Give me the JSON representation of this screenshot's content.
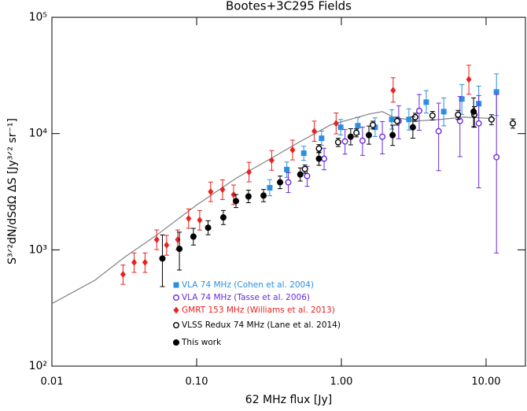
{
  "chart_data": {
    "type": "scatter",
    "title": "Bootes+3C295 Fields",
    "x_label": "62 MHz flux [Jy]",
    "y_label": "S³ᐟ²dN/dSdΩ ΔS [Jy³ᐟ² sr⁻¹]",
    "xscale": "log",
    "yscale": "log",
    "xlim": [
      0.01,
      18.7
    ],
    "ylim": [
      100,
      100000
    ],
    "xticks": [
      0.01,
      {
        "value": 0.1,
        "label": "0.10"
      },
      {
        "value": 1,
        "label": "1.00"
      },
      {
        "value": 10,
        "label": "10.00"
      }
    ],
    "yticks": [
      {
        "value": 100,
        "label": "10²"
      },
      {
        "value": 1000,
        "label": "10³"
      },
      {
        "value": 10000,
        "label": "10⁴"
      },
      {
        "value": 100000,
        "label": "10⁵"
      }
    ],
    "legend": "lower left",
    "model_curve": {
      "color": "#808080",
      "x": [
        0.01,
        0.0198,
        0.032,
        0.053,
        0.1,
        0.187,
        0.31,
        0.51,
        0.84,
        1.57,
        1.92,
        2.28,
        3.3,
        4.8,
        7.0,
        11.6
      ],
      "values": [
        345,
        547,
        870,
        1340,
        2430,
        4120,
        5890,
        8430,
        11860,
        14760,
        15450,
        13850,
        12830,
        13230,
        13850,
        13440
      ]
    },
    "series": [
      {
        "name": "VLA 74 MHz (Cohen et al. 2004)",
        "color": "#2a8fe0",
        "marker": "square",
        "x": [
          0.32,
          0.42,
          0.55,
          0.73,
          0.99,
          1.3,
          1.71,
          2.23,
          2.93,
          3.86,
          5.1,
          6.8,
          8.9,
          11.8
        ],
        "values": [
          3420,
          4900,
          6780,
          9110,
          11330,
          11680,
          11330,
          13230,
          13230,
          18630,
          15450,
          19840,
          18080,
          22800
        ],
        "yerr_minus": [
          500,
          700,
          900,
          1200,
          1600,
          1800,
          1900,
          2300,
          2500,
          3600,
          3800,
          5200,
          6000,
          8500
        ],
        "yerr_plus": [
          600,
          800,
          1000,
          1400,
          1900,
          2100,
          2300,
          2800,
          3100,
          4800,
          4800,
          6500,
          7500,
          9800
        ]
      },
      {
        "name": "VLA 74 MHz (Tasse et al. 2006)",
        "color": "#6a2ae0",
        "marker": "circle-open",
        "x": [
          0.43,
          0.58,
          0.76,
          1.06,
          1.4,
          1.92,
          2.49,
          3.45,
          4.7,
          6.6,
          8.9,
          11.8
        ],
        "values": [
          3810,
          4320,
          6080,
          8560,
          8690,
          9400,
          12830,
          15700,
          10480,
          12830,
          12240,
          6270
        ],
        "yerr_minus": [
          700,
          800,
          1200,
          1900,
          2200,
          2700,
          3800,
          5000,
          5680,
          6500,
          8830,
          5330
        ],
        "yerr_plus": [
          800,
          900,
          1400,
          2300,
          2700,
          3300,
          4500,
          6000,
          7800,
          8000,
          9000,
          15530
        ]
      },
      {
        "name": "GMRT 153 MHz (Williams et al. 2013)",
        "color": "#e8221f",
        "marker": "diamond",
        "x": [
          0.031,
          0.037,
          0.044,
          0.053,
          0.062,
          0.074,
          0.088,
          0.105,
          0.125,
          0.151,
          0.18,
          0.23,
          0.33,
          0.46,
          0.65,
          0.92,
          2.28,
          7.6
        ],
        "values": [
          615,
          780,
          780,
          1225,
          1100,
          1225,
          1860,
          1800,
          3160,
          3300,
          2980,
          4670,
          5890,
          7230,
          10480,
          12240,
          23530,
          29230
        ],
        "yerr_minus": [
          110,
          140,
          140,
          220,
          200,
          220,
          330,
          320,
          560,
          590,
          530,
          830,
          1050,
          1300,
          1900,
          2300,
          4900,
          7400
        ],
        "yerr_plus": [
          125,
          160,
          160,
          260,
          230,
          260,
          390,
          380,
          670,
          700,
          630,
          990,
          1250,
          1550,
          2300,
          2800,
          6700,
          9500
        ]
      },
      {
        "name": "VLSS Redux 74 MHz (Lane et al. 2014)",
        "color": "#000000",
        "marker": "circle-open",
        "x": [
          0.56,
          0.7,
          0.95,
          1.27,
          1.65,
          2.43,
          3.24,
          4.26,
          6.4,
          8.3,
          10.9,
          15.3
        ],
        "values": [
          4960,
          7440,
          8430,
          10160,
          11860,
          12830,
          13850,
          14300,
          14530,
          14530,
          13230,
          12240
        ],
        "yerr_minus": [
          400,
          600,
          700,
          800,
          900,
          1000,
          1100,
          1200,
          1300,
          3200,
          1300,
          1100
        ],
        "yerr_plus": [
          400,
          600,
          700,
          800,
          900,
          1000,
          1100,
          1200,
          1300,
          2500,
          1300,
          1100
        ]
      },
      {
        "name": "This work",
        "color": "#000000",
        "marker": "circle",
        "x": [
          0.058,
          0.076,
          0.095,
          0.12,
          0.153,
          0.187,
          0.228,
          0.29,
          0.377,
          0.52,
          0.7,
          1.16,
          1.55,
          2.26,
          3.12,
          8.2
        ],
        "values": [
          843,
          1020,
          1300,
          1550,
          1900,
          2630,
          2880,
          2930,
          3810,
          4450,
          6080,
          9400,
          9700,
          9700,
          11330,
          15450
        ],
        "yerr_minus": [
          360,
          350,
          200,
          200,
          250,
          320,
          340,
          340,
          450,
          550,
          750,
          1400,
          1600,
          1800,
          2200,
          4000
        ],
        "yerr_plus": [
          500,
          400,
          230,
          230,
          280,
          360,
          380,
          380,
          500,
          620,
          850,
          1600,
          1900,
          2100,
          2600,
          4800
        ]
      }
    ]
  }
}
